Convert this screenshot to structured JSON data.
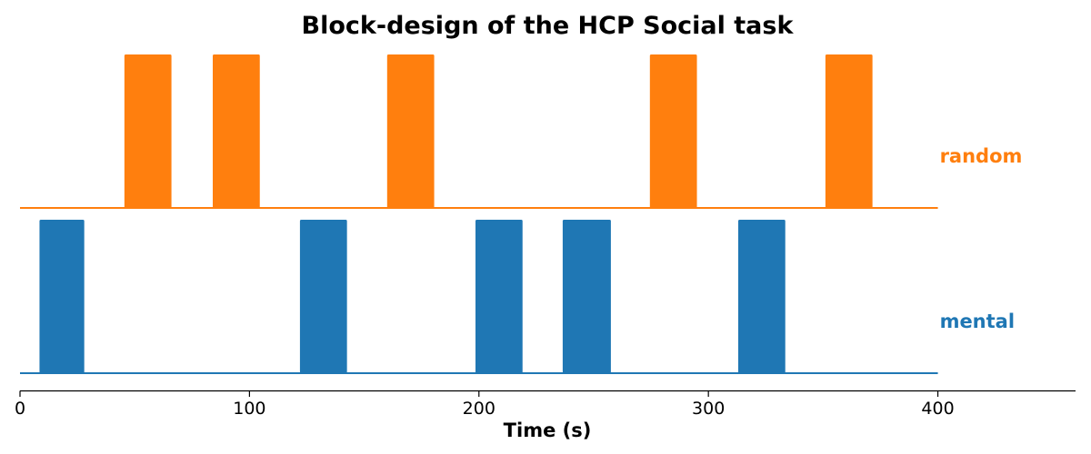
{
  "chart_data": {
    "type": "bar",
    "title": "Block-design of the HCP Social task",
    "xlabel": "Time (s)",
    "ylabel": "",
    "xlim": [
      0,
      460
    ],
    "xticks": [
      0,
      100,
      200,
      300,
      400
    ],
    "xtick_labels": [
      "0",
      "100",
      "200",
      "300",
      "400"
    ],
    "grid": false,
    "series": [
      {
        "name": "random",
        "color": "#ff7f0e",
        "blocks": [
          {
            "start": 45.5,
            "end": 66
          },
          {
            "start": 84,
            "end": 104.5
          },
          {
            "start": 160,
            "end": 180.5
          },
          {
            "start": 274.5,
            "end": 295
          },
          {
            "start": 351,
            "end": 371.5
          }
        ]
      },
      {
        "name": "mental",
        "color": "#1f77b4",
        "blocks": [
          {
            "start": 8.5,
            "end": 28
          },
          {
            "start": 122,
            "end": 142.5
          },
          {
            "start": 198.5,
            "end": 219
          },
          {
            "start": 236.5,
            "end": 257.5
          },
          {
            "start": 313,
            "end": 333.5
          }
        ]
      }
    ]
  }
}
